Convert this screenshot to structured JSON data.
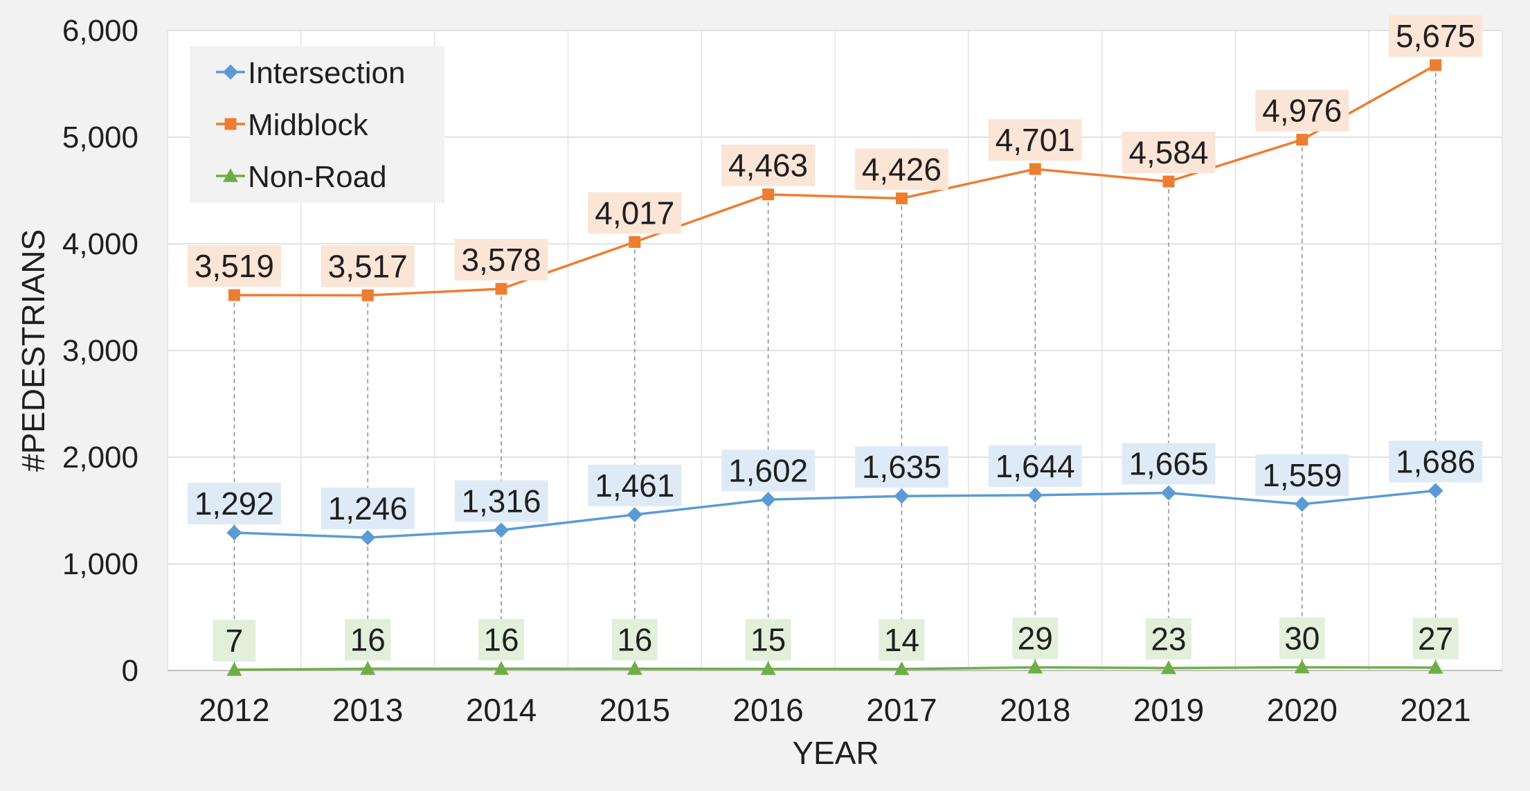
{
  "chart_data": {
    "type": "line",
    "title": "",
    "xlabel": "YEAR",
    "ylabel": "#PEDESTRIANS",
    "ylim": [
      0,
      6000
    ],
    "yticks": [
      0,
      1000,
      2000,
      3000,
      4000,
      5000,
      6000
    ],
    "ytick_labels": [
      "0",
      "1,000",
      "2,000",
      "3,000",
      "4,000",
      "5,000",
      "6,000"
    ],
    "categories": [
      "2012",
      "2013",
      "2014",
      "2015",
      "2016",
      "2017",
      "2018",
      "2019",
      "2020",
      "2021"
    ],
    "grid": true,
    "legend": "top-left",
    "series": [
      {
        "name": "Intersection",
        "marker": "diamond",
        "color": "#5b9bd5",
        "label_bg": "#deebf7",
        "values": [
          1292,
          1246,
          1316,
          1461,
          1602,
          1635,
          1644,
          1665,
          1559,
          1686
        ],
        "labels": [
          "1,292",
          "1,246",
          "1,316",
          "1,461",
          "1,602",
          "1,635",
          "1,644",
          "1,665",
          "1,559",
          "1,686"
        ]
      },
      {
        "name": "Midblock",
        "marker": "square",
        "color": "#ed7d31",
        "label_bg": "#fbe5d6",
        "values": [
          3519,
          3517,
          3578,
          4017,
          4463,
          4426,
          4701,
          4584,
          4976,
          5675
        ],
        "labels": [
          "3,519",
          "3,517",
          "3,578",
          "4,017",
          "4,463",
          "4,426",
          "4,701",
          "4,584",
          "4,976",
          "5,675"
        ]
      },
      {
        "name": "Non-Road",
        "marker": "triangle",
        "color": "#70ad47",
        "label_bg": "#e2efda",
        "values": [
          7,
          16,
          16,
          16,
          15,
          14,
          29,
          23,
          30,
          27
        ],
        "labels": [
          "7",
          "16",
          "16",
          "16",
          "15",
          "14",
          "29",
          "23",
          "30",
          "27"
        ]
      }
    ]
  }
}
